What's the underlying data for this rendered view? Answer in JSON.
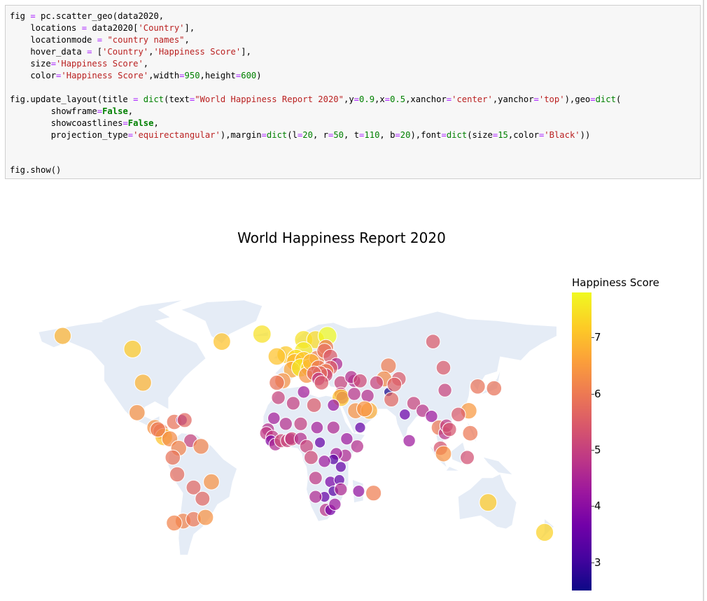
{
  "code_cell": {
    "lines": [
      [
        [
          "p",
          "fig "
        ],
        [
          "o",
          "="
        ],
        [
          "p",
          " pc.scatter_geo(data2020,"
        ]
      ],
      [
        [
          "p",
          "    locations "
        ],
        [
          "o",
          "="
        ],
        [
          "p",
          " data2020["
        ],
        [
          "s",
          "'Country'"
        ],
        [
          "p",
          "],"
        ]
      ],
      [
        [
          "p",
          "    locationmode "
        ],
        [
          "o",
          "="
        ],
        [
          "p",
          " "
        ],
        [
          "s",
          "\"country names\""
        ],
        [
          "p",
          ","
        ]
      ],
      [
        [
          "p",
          "    hover_data "
        ],
        [
          "o",
          "="
        ],
        [
          "p",
          " ["
        ],
        [
          "s",
          "'Country'"
        ],
        [
          "p",
          ","
        ],
        [
          "s",
          "'Happiness Score'"
        ],
        [
          "p",
          "],"
        ]
      ],
      [
        [
          "p",
          "    size"
        ],
        [
          "o",
          "="
        ],
        [
          "s",
          "'Happiness Score'"
        ],
        [
          "p",
          ","
        ]
      ],
      [
        [
          "p",
          "    color"
        ],
        [
          "o",
          "="
        ],
        [
          "s",
          "'Happiness Score'"
        ],
        [
          "p",
          ",width"
        ],
        [
          "o",
          "="
        ],
        [
          "n",
          "950"
        ],
        [
          "p",
          ",height"
        ],
        [
          "o",
          "="
        ],
        [
          "n",
          "600"
        ],
        [
          "p",
          ")"
        ]
      ],
      [
        [
          "p",
          ""
        ]
      ],
      [
        [
          "p",
          "fig.update_layout(title "
        ],
        [
          "o",
          "="
        ],
        [
          "p",
          " "
        ],
        [
          "n",
          "dict"
        ],
        [
          "p",
          "(text"
        ],
        [
          "o",
          "="
        ],
        [
          "s",
          "\"World Happiness Report 2020\""
        ],
        [
          "p",
          ",y"
        ],
        [
          "o",
          "="
        ],
        [
          "n",
          "0.9"
        ],
        [
          "p",
          ",x"
        ],
        [
          "o",
          "="
        ],
        [
          "n",
          "0.5"
        ],
        [
          "p",
          ",xanchor"
        ],
        [
          "o",
          "="
        ],
        [
          "s",
          "'center'"
        ],
        [
          "p",
          ",yanchor"
        ],
        [
          "o",
          "="
        ],
        [
          "s",
          "'top'"
        ],
        [
          "p",
          "),geo"
        ],
        [
          "o",
          "="
        ],
        [
          "n",
          "dict"
        ],
        [
          "p",
          "("
        ]
      ],
      [
        [
          "p",
          "        showframe"
        ],
        [
          "o",
          "="
        ],
        [
          "k",
          "False"
        ],
        [
          "p",
          ","
        ]
      ],
      [
        [
          "p",
          "        showcoastlines"
        ],
        [
          "o",
          "="
        ],
        [
          "k",
          "False"
        ],
        [
          "p",
          ","
        ]
      ],
      [
        [
          "p",
          "        projection_type"
        ],
        [
          "o",
          "="
        ],
        [
          "s",
          "'equirectangular'"
        ],
        [
          "p",
          "),margin"
        ],
        [
          "o",
          "="
        ],
        [
          "n",
          "dict"
        ],
        [
          "p",
          "(l"
        ],
        [
          "o",
          "="
        ],
        [
          "n",
          "20"
        ],
        [
          "p",
          ", r"
        ],
        [
          "o",
          "="
        ],
        [
          "n",
          "50"
        ],
        [
          "p",
          ", t"
        ],
        [
          "o",
          "="
        ],
        [
          "n",
          "110"
        ],
        [
          "p",
          ", b"
        ],
        [
          "o",
          "="
        ],
        [
          "n",
          "20"
        ],
        [
          "p",
          "),font"
        ],
        [
          "o",
          "="
        ],
        [
          "n",
          "dict"
        ],
        [
          "p",
          "(size"
        ],
        [
          "o",
          "="
        ],
        [
          "n",
          "15"
        ],
        [
          "p",
          ",color"
        ],
        [
          "o",
          "="
        ],
        [
          "s",
          "'Black'"
        ],
        [
          "p",
          "))"
        ]
      ],
      [
        [
          "p",
          ""
        ]
      ],
      [
        [
          "p",
          ""
        ]
      ],
      [
        [
          "p",
          "fig.show()"
        ]
      ]
    ]
  },
  "output": {
    "title": "World Happiness Report 2020",
    "colorbar": {
      "title": "Happiness Score",
      "ticks": [
        "7",
        "6",
        "5",
        "4",
        "3"
      ]
    },
    "colors": {
      "land": "#e5ecf6",
      "marker_outline": "#ffffff",
      "scale_low": "#0d0887",
      "scale_high": "#f0f921"
    }
  },
  "chart_data": {
    "type": "scatter",
    "projection": "equirectangular",
    "colorscale": "plasma",
    "color_range": [
      2.5,
      7.8
    ],
    "title": "World Happiness Report 2020",
    "legend": "colorbar right",
    "points": [
      {
        "lon": -18,
        "lat": 65,
        "v": 7.5
      },
      {
        "lon": -45,
        "lat": 61,
        "v": 7.1
      },
      {
        "lon": -105,
        "lat": 57,
        "v": 7.2
      },
      {
        "lon": -152,
        "lat": 64,
        "v": 6.9
      },
      {
        "lon": -98,
        "lat": 39,
        "v": 6.9
      },
      {
        "lon": -102,
        "lat": 23,
        "v": 6.4
      },
      {
        "lon": -90,
        "lat": 15,
        "v": 6.4
      },
      {
        "lon": -86,
        "lat": 13,
        "v": 6.1
      },
      {
        "lon": -84,
        "lat": 10,
        "v": 7.1
      },
      {
        "lon": -88,
        "lat": 14,
        "v": 6.0
      },
      {
        "lon": -80,
        "lat": 9,
        "v": 6.3
      },
      {
        "lon": -77,
        "lat": 18,
        "v": 5.9
      },
      {
        "lon": -72,
        "lat": 19,
        "v": 3.7
      },
      {
        "lon": -70,
        "lat": 19,
        "v": 5.7
      },
      {
        "lon": -66,
        "lat": 8,
        "v": 5.1
      },
      {
        "lon": -59,
        "lat": 5,
        "v": 6.2
      },
      {
        "lon": -74,
        "lat": 4,
        "v": 6.2
      },
      {
        "lon": -78,
        "lat": -1,
        "v": 5.9
      },
      {
        "lon": -75,
        "lat": -10,
        "v": 5.8
      },
      {
        "lon": -64,
        "lat": -17,
        "v": 5.7
      },
      {
        "lon": -52,
        "lat": -14,
        "v": 6.4
      },
      {
        "lon": -71,
        "lat": -35,
        "v": 6.2
      },
      {
        "lon": -64,
        "lat": -34,
        "v": 6.0
      },
      {
        "lon": -56,
        "lat": -33,
        "v": 6.4
      },
      {
        "lon": -58,
        "lat": -23,
        "v": 5.7
      },
      {
        "lon": -77,
        "lat": -36,
        "v": 6.2
      },
      {
        "lon": 10,
        "lat": 62,
        "v": 7.5
      },
      {
        "lon": 18,
        "lat": 62,
        "v": 7.4
      },
      {
        "lon": 26,
        "lat": 64,
        "v": 7.8
      },
      {
        "lon": 10,
        "lat": 56,
        "v": 7.6
      },
      {
        "lon": -2,
        "lat": 54,
        "v": 7.2
      },
      {
        "lon": -8,
        "lat": 53,
        "v": 7.1
      },
      {
        "lon": 5,
        "lat": 52,
        "v": 7.4
      },
      {
        "lon": 4,
        "lat": 50,
        "v": 6.9
      },
      {
        "lon": 10,
        "lat": 51,
        "v": 7.1
      },
      {
        "lon": 2,
        "lat": 46,
        "v": 6.7
      },
      {
        "lon": 8,
        "lat": 47,
        "v": 7.6
      },
      {
        "lon": 14,
        "lat": 47,
        "v": 7.3
      },
      {
        "lon": -4,
        "lat": 40,
        "v": 6.4
      },
      {
        "lon": -8,
        "lat": 39,
        "v": 5.9
      },
      {
        "lon": 12,
        "lat": 43,
        "v": 6.4
      },
      {
        "lon": 19,
        "lat": 52,
        "v": 6.2
      },
      {
        "lon": 15,
        "lat": 50,
        "v": 6.9
      },
      {
        "lon": 20,
        "lat": 47,
        "v": 6.0
      },
      {
        "lon": 25,
        "lat": 58,
        "v": 6.0
      },
      {
        "lon": 24,
        "lat": 56,
        "v": 5.9
      },
      {
        "lon": 28,
        "lat": 53,
        "v": 5.5
      },
      {
        "lon": 32,
        "lat": 49,
        "v": 4.6
      },
      {
        "lon": 28,
        "lat": 47,
        "v": 5.6
      },
      {
        "lon": 25,
        "lat": 45,
        "v": 6.1
      },
      {
        "lon": 25,
        "lat": 43,
        "v": 5.1
      },
      {
        "lon": 21,
        "lat": 44,
        "v": 5.8
      },
      {
        "lon": 17,
        "lat": 44,
        "v": 5.7
      },
      {
        "lon": 20,
        "lat": 41,
        "v": 4.9
      },
      {
        "lon": 22,
        "lat": 39,
        "v": 5.5
      },
      {
        "lon": 35,
        "lat": 39,
        "v": 5.1
      },
      {
        "lon": 44,
        "lat": 40,
        "v": 4.7
      },
      {
        "lon": 42,
        "lat": 42,
        "v": 4.7
      },
      {
        "lon": 48,
        "lat": 40,
        "v": 5.2
      },
      {
        "lon": 35,
        "lat": 33,
        "v": 5.0
      },
      {
        "lon": 36,
        "lat": 31,
        "v": 4.6
      },
      {
        "lon": 35,
        "lat": 31,
        "v": 7.1
      },
      {
        "lon": 44,
        "lat": 33,
        "v": 4.8
      },
      {
        "lon": 53,
        "lat": 32,
        "v": 4.7
      },
      {
        "lon": 45,
        "lat": 24,
        "v": 6.4
      },
      {
        "lon": 54,
        "lat": 24,
        "v": 6.8
      },
      {
        "lon": 51,
        "lat": 25,
        "v": 6.4
      },
      {
        "lon": 48,
        "lat": 15,
        "v": 3.5
      },
      {
        "lon": 67,
        "lat": 34,
        "v": 2.6
      },
      {
        "lon": 69,
        "lat": 30,
        "v": 5.7
      },
      {
        "lon": 78,
        "lat": 22,
        "v": 3.6
      },
      {
        "lon": 84,
        "lat": 28,
        "v": 5.1
      },
      {
        "lon": 90,
        "lat": 24,
        "v": 4.8
      },
      {
        "lon": 96,
        "lat": 21,
        "v": 4.3
      },
      {
        "lon": 101,
        "lat": 15,
        "v": 6.0
      },
      {
        "lon": 105,
        "lat": 12,
        "v": 4.8
      },
      {
        "lon": 106,
        "lat": 16,
        "v": 4.9
      },
      {
        "lon": 108,
        "lat": 14,
        "v": 5.4
      },
      {
        "lon": 102,
        "lat": 4,
        "v": 5.4
      },
      {
        "lon": 104,
        "lat": 1,
        "v": 6.4
      },
      {
        "lon": 81,
        "lat": 8,
        "v": 4.3
      },
      {
        "lon": 105,
        "lat": 35,
        "v": 5.1
      },
      {
        "lon": 104,
        "lat": 47,
        "v": 5.5
      },
      {
        "lon": 127,
        "lat": 37,
        "v": 5.9
      },
      {
        "lon": 138,
        "lat": 36,
        "v": 5.9
      },
      {
        "lon": 121,
        "lat": 24,
        "v": 6.5
      },
      {
        "lon": 114,
        "lat": 22,
        "v": 5.5
      },
      {
        "lon": 122,
        "lat": 12,
        "v": 6.0
      },
      {
        "lon": 120,
        "lat": -1,
        "v": 5.3
      },
      {
        "lon": 67,
        "lat": 48,
        "v": 6.1
      },
      {
        "lon": 64,
        "lat": 41,
        "v": 6.3
      },
      {
        "lon": 59,
        "lat": 39,
        "v": 5.1
      },
      {
        "lon": 74,
        "lat": 41,
        "v": 5.5
      },
      {
        "lon": 71,
        "lat": 38,
        "v": 5.6
      },
      {
        "lon": 97,
        "lat": 61,
        "v": 5.5
      },
      {
        "lon": 134,
        "lat": -25,
        "v": 7.2
      },
      {
        "lon": 172,
        "lat": -41,
        "v": 7.3
      },
      {
        "lon": -7,
        "lat": 31,
        "v": 5.1
      },
      {
        "lon": 3,
        "lat": 28,
        "v": 5.0
      },
      {
        "lon": 10,
        "lat": 34,
        "v": 4.4
      },
      {
        "lon": 17,
        "lat": 27,
        "v": 5.5
      },
      {
        "lon": 30,
        "lat": 27,
        "v": 4.2
      },
      {
        "lon": -10,
        "lat": 20,
        "v": 4.4
      },
      {
        "lon": -2,
        "lat": 17,
        "v": 4.7
      },
      {
        "lon": 8,
        "lat": 17,
        "v": 5.0
      },
      {
        "lon": 19,
        "lat": 15,
        "v": 4.4
      },
      {
        "lon": 30,
        "lat": 15,
        "v": 4.6
      },
      {
        "lon": -14,
        "lat": 14,
        "v": 4.7
      },
      {
        "lon": -15,
        "lat": 12,
        "v": 4.9
      },
      {
        "lon": -11,
        "lat": 10,
        "v": 4.9
      },
      {
        "lon": -12,
        "lat": 8,
        "v": 3.9
      },
      {
        "lon": -9,
        "lat": 6,
        "v": 4.6
      },
      {
        "lon": -5,
        "lat": 8,
        "v": 5.2
      },
      {
        "lon": -1,
        "lat": 8,
        "v": 5.1
      },
      {
        "lon": 1,
        "lat": 9,
        "v": 4.2
      },
      {
        "lon": 2,
        "lat": 9,
        "v": 5.2
      },
      {
        "lon": 8,
        "lat": 9,
        "v": 4.7
      },
      {
        "lon": 12,
        "lat": 5,
        "v": 5.1
      },
      {
        "lon": 21,
        "lat": 7,
        "v": 3.5
      },
      {
        "lon": 39,
        "lat": 9,
        "v": 4.3
      },
      {
        "lon": 46,
        "lat": 5,
        "v": 4.7
      },
      {
        "lon": 38,
        "lat": 0,
        "v": 4.6
      },
      {
        "lon": 32,
        "lat": 1,
        "v": 4.4
      },
      {
        "lon": 30,
        "lat": -2,
        "v": 3.3
      },
      {
        "lon": 35,
        "lat": -6,
        "v": 3.5
      },
      {
        "lon": 24,
        "lat": -3,
        "v": 4.3
      },
      {
        "lon": 15,
        "lat": -1,
        "v": 5.2
      },
      {
        "lon": 18,
        "lat": -12,
        "v": 4.9
      },
      {
        "lon": 28,
        "lat": -14,
        "v": 3.8
      },
      {
        "lon": 34,
        "lat": -13,
        "v": 3.5
      },
      {
        "lon": 30,
        "lat": -19,
        "v": 3.3
      },
      {
        "lon": 35,
        "lat": -18,
        "v": 4.6
      },
      {
        "lon": 24,
        "lat": -22,
        "v": 3.5
      },
      {
        "lon": 18,
        "lat": -22,
        "v": 4.6
      },
      {
        "lon": 25,
        "lat": -29,
        "v": 4.8
      },
      {
        "lon": 28,
        "lat": -29,
        "v": 3.7
      },
      {
        "lon": 31,
        "lat": -26,
        "v": 4.3
      },
      {
        "lon": 47,
        "lat": -19,
        "v": 4.2
      },
      {
        "lon": 57,
        "lat": -20,
        "v": 6.1
      }
    ]
  }
}
